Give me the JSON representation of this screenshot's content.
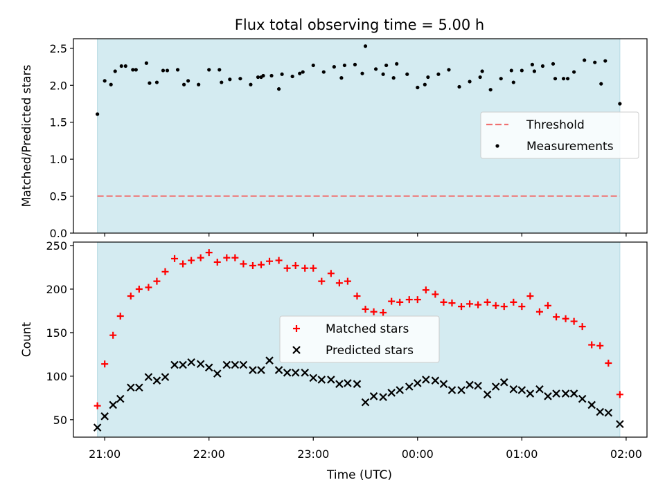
{
  "figure": {
    "title": "Flux total observing time = 5.00 h",
    "xlabel": "Time (UTC)",
    "xticks": [
      "21:00",
      "22:00",
      "23:00",
      "00:00",
      "01:00",
      "02:00"
    ],
    "xlim_hours": [
      20.7,
      26.2
    ],
    "span_hours": [
      20.93,
      25.94
    ],
    "span_color": "#d4ebf1"
  },
  "chart_data": [
    {
      "type": "scatter",
      "ylabel": "Matched/Predicted stars",
      "ylim": [
        0,
        2.63
      ],
      "yticks": [
        0.0,
        0.5,
        1.0,
        1.5,
        2.0,
        2.5
      ],
      "ytick_labels": [
        "0.0",
        "0.5",
        "1.0",
        "1.5",
        "2.0",
        "2.5"
      ],
      "grid": false,
      "legend_position": "center-right",
      "legend": [
        "Threshold",
        "Measurements"
      ],
      "threshold": {
        "name": "Threshold",
        "value": 0.5,
        "color": "#f07070"
      },
      "series": [
        {
          "name": "Measurements",
          "color": "#000000",
          "x": [
            20.93,
            21.0,
            21.1,
            21.2,
            21.3,
            21.4,
            21.5,
            21.6,
            21.7,
            21.8,
            21.9,
            22.0,
            22.1,
            22.2,
            22.3,
            22.4,
            22.5,
            22.6,
            22.7,
            22.8,
            22.9,
            23.0,
            23.1,
            23.2,
            23.3,
            23.4,
            23.5,
            23.6,
            23.7,
            23.8,
            23.9,
            24.0,
            24.1,
            24.2,
            24.3,
            24.4,
            24.5,
            24.6,
            24.7,
            24.8,
            24.9,
            25.0,
            25.1,
            25.2,
            25.3,
            25.4,
            25.5,
            25.6,
            25.7,
            25.8,
            25.94,
            21.06,
            21.16,
            21.27,
            21.43,
            21.56,
            21.76,
            22.12,
            22.47,
            22.52,
            22.67,
            22.87,
            23.27,
            23.47,
            23.67,
            23.77,
            24.07,
            24.62,
            24.92,
            25.12,
            25.32,
            25.44,
            25.76
          ],
          "y": [
            1.61,
            2.06,
            2.19,
            2.26,
            2.21,
            2.3,
            2.04,
            2.2,
            2.21,
            2.06,
            2.01,
            2.21,
            2.21,
            2.08,
            2.09,
            2.01,
            2.11,
            2.13,
            2.15,
            2.12,
            2.18,
            2.27,
            2.18,
            2.25,
            2.27,
            2.28,
            2.53,
            2.22,
            2.27,
            2.29,
            2.15,
            1.97,
            2.11,
            2.15,
            2.21,
            1.98,
            2.05,
            2.11,
            1.94,
            2.09,
            2.2,
            2.2,
            2.28,
            2.26,
            2.29,
            2.09,
            2.18,
            2.34,
            2.31,
            2.33,
            1.75,
            2.01,
            2.26,
            2.21,
            2.03,
            2.2,
            2.01,
            2.04,
            2.11,
            2.13,
            1.95,
            2.16,
            2.1,
            2.16,
            2.15,
            2.1,
            2.01,
            2.19,
            2.04,
            2.19,
            2.09,
            2.09,
            2.02
          ]
        }
      ]
    },
    {
      "type": "scatter",
      "ylabel": "Count",
      "ylim": [
        30,
        254
      ],
      "yticks": [
        50,
        100,
        150,
        200,
        250
      ],
      "ytick_labels": [
        "50",
        "100",
        "150",
        "200",
        "250"
      ],
      "grid": false,
      "legend_position": "center",
      "legend": [
        "Matched stars",
        "Predicted stars"
      ],
      "series": [
        {
          "name": "Matched stars",
          "marker": "plus",
          "color": "#ff0000",
          "x": [
            20.93,
            21.0,
            21.08,
            21.15,
            21.25,
            21.33,
            21.42,
            21.5,
            21.58,
            21.67,
            21.75,
            21.83,
            21.92,
            22.0,
            22.08,
            22.17,
            22.25,
            22.33,
            22.42,
            22.5,
            22.58,
            22.67,
            22.75,
            22.83,
            22.92,
            23.0,
            23.08,
            23.17,
            23.25,
            23.33,
            23.42,
            23.5,
            23.58,
            23.67,
            23.75,
            23.83,
            23.92,
            24.0,
            24.08,
            24.17,
            24.25,
            24.33,
            24.42,
            24.5,
            24.58,
            24.67,
            24.75,
            24.83,
            24.92,
            25.0,
            25.08,
            25.17,
            25.25,
            25.33,
            25.42,
            25.5,
            25.58,
            25.67,
            25.75,
            25.83,
            25.94
          ],
          "y": [
            66,
            114,
            147,
            169,
            192,
            200,
            202,
            209,
            220,
            235,
            229,
            233,
            236,
            242,
            231,
            236,
            236,
            229,
            227,
            228,
            232,
            233,
            224,
            227,
            224,
            224,
            209,
            218,
            207,
            209,
            192,
            177,
            174,
            173,
            186,
            185,
            188,
            188,
            199,
            194,
            185,
            184,
            180,
            183,
            182,
            185,
            181,
            180,
            185,
            180,
            192,
            174,
            181,
            168,
            166,
            163,
            157,
            136,
            135,
            115,
            79
          ]
        },
        {
          "name": "Predicted stars",
          "marker": "x",
          "color": "#000000",
          "x": [
            20.93,
            21.0,
            21.08,
            21.15,
            21.25,
            21.33,
            21.42,
            21.5,
            21.58,
            21.67,
            21.75,
            21.83,
            21.92,
            22.0,
            22.08,
            22.17,
            22.25,
            22.33,
            22.42,
            22.5,
            22.58,
            22.67,
            22.75,
            22.83,
            22.92,
            23.0,
            23.08,
            23.17,
            23.25,
            23.33,
            23.42,
            23.5,
            23.58,
            23.67,
            23.75,
            23.83,
            23.92,
            24.0,
            24.08,
            24.17,
            24.25,
            24.33,
            24.42,
            24.5,
            24.58,
            24.67,
            24.75,
            24.83,
            24.92,
            25.0,
            25.08,
            25.17,
            25.25,
            25.33,
            25.42,
            25.5,
            25.58,
            25.67,
            25.75,
            25.83,
            25.94
          ],
          "y": [
            41,
            54,
            67,
            74,
            87,
            87,
            99,
            95,
            99,
            113,
            113,
            116,
            114,
            110,
            103,
            113,
            113,
            113,
            107,
            107,
            118,
            107,
            104,
            104,
            104,
            98,
            96,
            96,
            91,
            92,
            91,
            70,
            77,
            76,
            81,
            84,
            88,
            92,
            96,
            95,
            91,
            84,
            84,
            90,
            89,
            79,
            88,
            93,
            85,
            84,
            80,
            85,
            77,
            80,
            80,
            80,
            74,
            67,
            59,
            58,
            45
          ]
        }
      ]
    }
  ]
}
